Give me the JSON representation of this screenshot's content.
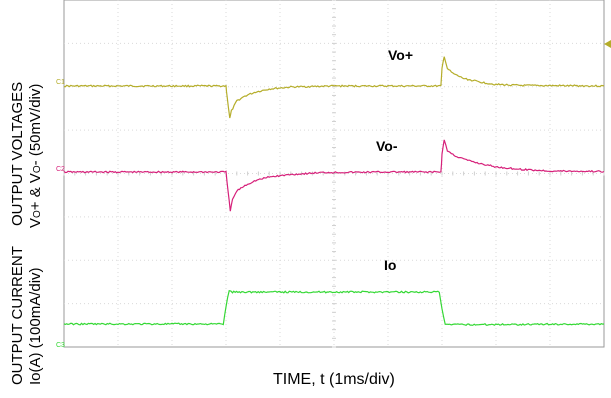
{
  "chart_data": {
    "type": "line",
    "instrument": "oscilloscope",
    "xlabel": "TIME, t (1ms/div)",
    "x_unit_per_div": "1ms/div",
    "x_divisions": 10,
    "y_divisions": 8,
    "grid": true,
    "ylabels": [
      {
        "line1": "OUTPUT VOLTAGES",
        "line2_a": "V",
        "line2_sub_a": "O",
        "line2_b": "+ & V",
        "line2_sub_b": "O",
        "line2_c": "- (50mV/div)"
      },
      {
        "line1": "OUTPUT CURRENT",
        "line2": "Io(A) (100mA/div)"
      }
    ],
    "series": [
      {
        "name": "Vo+",
        "channel_marker": "C1",
        "color": "#b5ad2a",
        "scale": "50mV/div",
        "x_div": [
          0,
          3.0,
          3.02,
          3.07,
          3.1,
          3.2,
          3.35,
          3.55,
          3.8,
          4.2,
          5,
          6,
          6.98,
          7.0,
          7.04,
          7.1,
          7.2,
          7.4,
          7.7,
          8.0,
          8.5,
          10
        ],
        "y_div": [
          0,
          0,
          -0.2,
          -0.65,
          -0.5,
          -0.3,
          -0.2,
          -0.12,
          -0.06,
          -0.02,
          0,
          0,
          0,
          0.35,
          0.6,
          0.35,
          0.25,
          0.15,
          0.08,
          0.03,
          0.01,
          0
        ]
      },
      {
        "name": "Vo-",
        "channel_marker": "C2",
        "color": "#d6207a",
        "scale": "50mV/div",
        "x_div": [
          0,
          3.0,
          3.04,
          3.08,
          3.12,
          3.2,
          3.35,
          3.55,
          3.8,
          4.2,
          4.8,
          6,
          6.98,
          7.0,
          7.04,
          7.1,
          7.25,
          7.45,
          7.7,
          8.0,
          8.5,
          9.0,
          10
        ],
        "y_div": [
          0,
          0,
          -0.4,
          -0.78,
          -0.55,
          -0.38,
          -0.27,
          -0.17,
          -0.1,
          -0.05,
          -0.01,
          0,
          0,
          0.35,
          0.65,
          0.42,
          0.32,
          0.24,
          0.17,
          0.1,
          0.05,
          0.02,
          0.01
        ]
      },
      {
        "name": "Io",
        "channel_marker": "C3",
        "color": "#35d835",
        "scale": "100mA/div",
        "x_div": [
          0,
          2.95,
          3.0,
          3.06,
          3.12,
          6.95,
          7.0,
          7.06,
          7.12,
          10
        ],
        "y_div": [
          0,
          0,
          0.55,
          1.05,
          1.0,
          1.0,
          0.45,
          0.0,
          -0.02,
          0
        ]
      }
    ]
  }
}
